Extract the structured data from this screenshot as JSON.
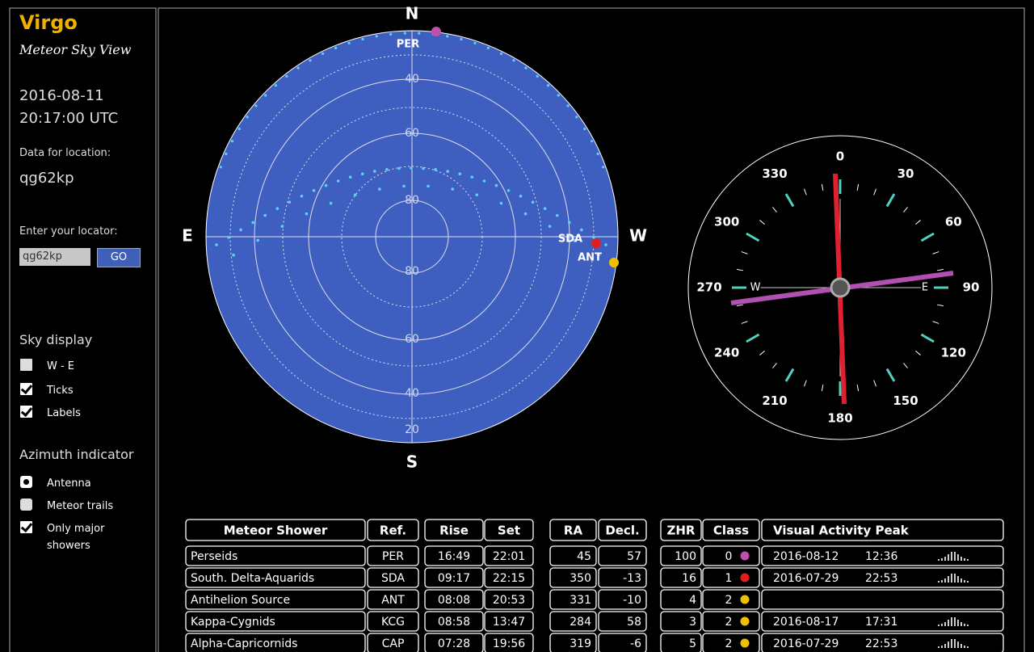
{
  "sidebar": {
    "title": "Virgo",
    "subtitle": "Meteor Sky View",
    "date": "2016-08-11",
    "time": "20:17:00 UTC",
    "location_label": "Data for location:",
    "location": "qg62kp",
    "locator_label": "Enter your locator:",
    "locator_input": "qg62kp",
    "go_button": "GO",
    "sky_display": {
      "heading": "Sky display",
      "options": [
        {
          "label": "W - E",
          "checked": false
        },
        {
          "label": "Ticks",
          "checked": true
        },
        {
          "label": "Labels",
          "checked": true
        }
      ]
    },
    "azimuth_indicator": {
      "heading": "Azimuth indicator",
      "options": [
        {
          "label": "Antenna",
          "kind": "radio",
          "checked": true
        },
        {
          "label": "Meteor trails",
          "kind": "radio",
          "checked": false
        },
        {
          "label": "Only major showers",
          "kind": "checkbox",
          "checked": true
        }
      ]
    }
  },
  "sky_view": {
    "directions": {
      "north": "N",
      "east": "E",
      "west": "W",
      "south": "S"
    },
    "altitude_labels_north": [
      "40",
      "60",
      "80"
    ],
    "altitude_labels_south": [
      "80",
      "60",
      "40",
      "20"
    ],
    "showers": [
      {
        "label": "PER",
        "color": "#c04fb0"
      },
      {
        "label": "SDA",
        "color": "#e02020"
      },
      {
        "label": "ANT",
        "color": "#f0c000"
      }
    ]
  },
  "compass": {
    "bearings": [
      "0",
      "30",
      "60",
      "90",
      "120",
      "150",
      "180",
      "210",
      "240",
      "270",
      "300",
      "330"
    ],
    "west": "W",
    "east": "E"
  },
  "table": {
    "headers": [
      "Meteor Shower",
      "Ref.",
      "Rise",
      "Set",
      "RA",
      "Decl.",
      "ZHR",
      "Class",
      "Visual Activity Peak"
    ],
    "rows": [
      {
        "name": "Perseids",
        "ref": "PER",
        "rise": "16:49",
        "set": "22:01",
        "ra": 45,
        "decl": 57,
        "zhr": 100,
        "class": 0,
        "class_color": "#c04fb0",
        "peak_date": "2016-08-12",
        "peak_time": "12:36"
      },
      {
        "name": "South. Delta-Aquarids",
        "ref": "SDA",
        "rise": "09:17",
        "set": "22:15",
        "ra": 350,
        "decl": -13,
        "zhr": 16,
        "class": 1,
        "class_color": "#e02020",
        "peak_date": "2016-07-29",
        "peak_time": "22:53"
      },
      {
        "name": "Antihelion Source",
        "ref": "ANT",
        "rise": "08:08",
        "set": "20:53",
        "ra": 331,
        "decl": -10,
        "zhr": 4,
        "class": 2,
        "class_color": "#f0c000"
      },
      {
        "name": "Kappa-Cygnids",
        "ref": "KCG",
        "rise": "08:58",
        "set": "13:47",
        "ra": 284,
        "decl": 58,
        "zhr": 3,
        "class": 2,
        "class_color": "#f0c000",
        "peak_date": "2016-08-17",
        "peak_time": "17:31"
      },
      {
        "name": "Alpha-Capricornids",
        "ref": "CAP",
        "rise": "07:28",
        "set": "19:56",
        "ra": 319,
        "decl": -6,
        "zhr": 5,
        "class": 2,
        "class_color": "#f0c000",
        "peak_date": "2016-07-29",
        "peak_time": "22:53"
      }
    ]
  }
}
